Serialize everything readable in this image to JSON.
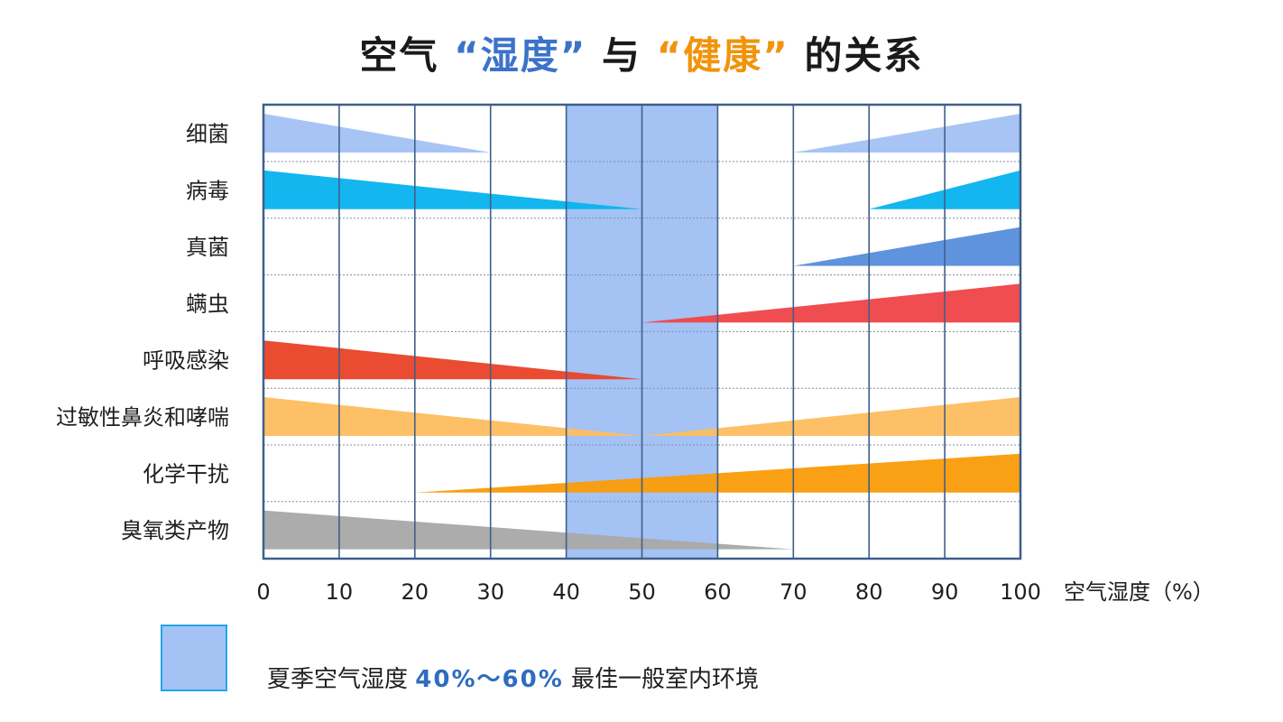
{
  "title": {
    "part1": "空气",
    "part2": "“湿度”",
    "part3": "与",
    "part4": "“健康”",
    "part5": "的关系"
  },
  "legend": {
    "text_before": "夏季空气湿度",
    "range": "40%～60%",
    "text_after": "最佳一般室内环境",
    "color": "#a4c2f4"
  },
  "chart_data": {
    "type": "area",
    "title": "空气“湿度”与“健康”的关系",
    "xlabel": "空气湿度（%）",
    "ylabel": "",
    "xlim": [
      0,
      100
    ],
    "x_ticks": [
      "0",
      "10",
      "20",
      "30",
      "40",
      "50",
      "60",
      "70",
      "80",
      "90",
      "100"
    ],
    "optimal_band": [
      40,
      60
    ],
    "grid": "vertical every 10",
    "series": [
      {
        "name": "细菌",
        "color": "#a4c2f4",
        "segments": [
          {
            "x": [
              0,
              30
            ],
            "y": [
              1,
              0
            ]
          },
          {
            "x": [
              70,
              100
            ],
            "y": [
              0,
              1
            ]
          }
        ]
      },
      {
        "name": "病毒",
        "color": "#0bb4ee",
        "segments": [
          {
            "x": [
              0,
              50
            ],
            "y": [
              1,
              0
            ]
          },
          {
            "x": [
              80,
              100
            ],
            "y": [
              0,
              1
            ]
          }
        ]
      },
      {
        "name": "真菌",
        "color": "#5b8fdc",
        "segments": [
          {
            "x": [
              70,
              100
            ],
            "y": [
              0,
              1
            ]
          }
        ]
      },
      {
        "name": "螨虫",
        "color": "#f0474a",
        "segments": [
          {
            "x": [
              50,
              100
            ],
            "y": [
              0,
              1
            ]
          }
        ]
      },
      {
        "name": "呼吸感染",
        "color": "#e8462a",
        "segments": [
          {
            "x": [
              0,
              50
            ],
            "y": [
              1,
              0
            ]
          }
        ]
      },
      {
        "name": "过敏性鼻炎和哮喘",
        "color": "#fdbe61",
        "segments": [
          {
            "x": [
              0,
              50
            ],
            "y": [
              1,
              0
            ]
          },
          {
            "x": [
              50,
              100
            ],
            "y": [
              0,
              1
            ]
          }
        ]
      },
      {
        "name": "化学干扰",
        "color": "#f99d0c",
        "segments": [
          {
            "x": [
              20,
              100
            ],
            "y": [
              0,
              1
            ]
          }
        ]
      },
      {
        "name": "臭氧类产物",
        "color": "#a9a9a9",
        "segments": [
          {
            "x": [
              0,
              70
            ],
            "y": [
              1,
              0
            ]
          }
        ]
      }
    ]
  }
}
